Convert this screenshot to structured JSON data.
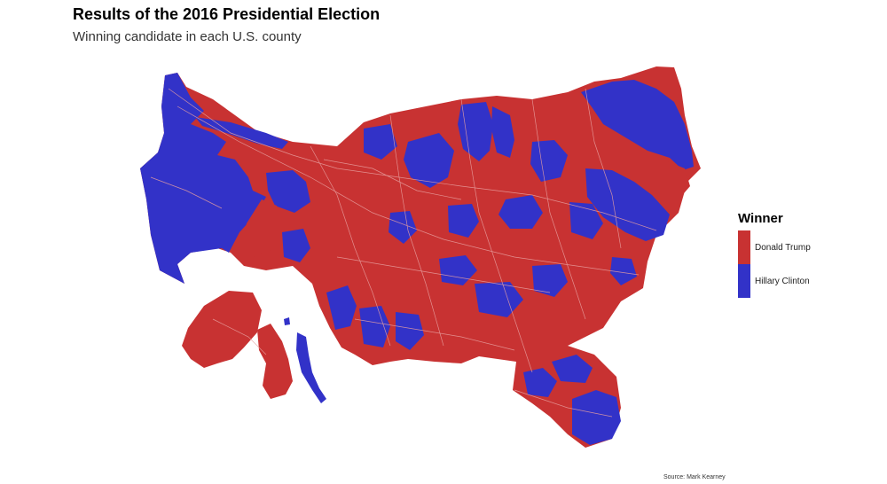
{
  "header": {
    "title": "Results of the 2016 Presidential Election",
    "subtitle": "Winning candidate in each U.S. county"
  },
  "legend": {
    "title": "Winner",
    "items": [
      {
        "label": "Donald Trump",
        "color": "#c83232"
      },
      {
        "label": "Hillary Clinton",
        "color": "#3232c8"
      }
    ]
  },
  "caption": "Source: Mark Kearney",
  "colors": {
    "trump": "#c83232",
    "clinton": "#3232c8",
    "border": "#e8a0a0"
  }
}
